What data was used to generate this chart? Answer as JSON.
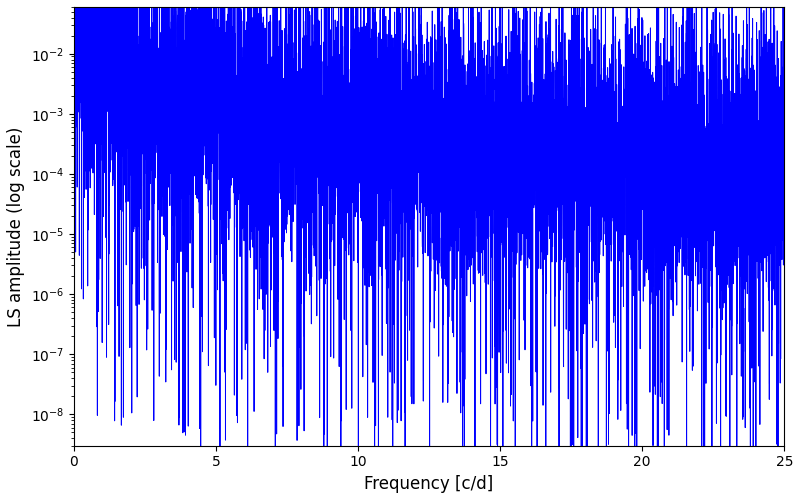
{
  "title": "",
  "xlabel": "Frequency [c/d]",
  "ylabel": "LS amplitude (log scale)",
  "line_color": "#0000ff",
  "line_width": 0.7,
  "xlim": [
    0,
    25
  ],
  "ylim_low": 3e-09,
  "ylim_high": 0.06,
  "freq_max": 25,
  "n_points": 8000,
  "seed": 17,
  "background_color": "#ffffff",
  "figsize": [
    8.0,
    5.0
  ],
  "dpi": 100
}
